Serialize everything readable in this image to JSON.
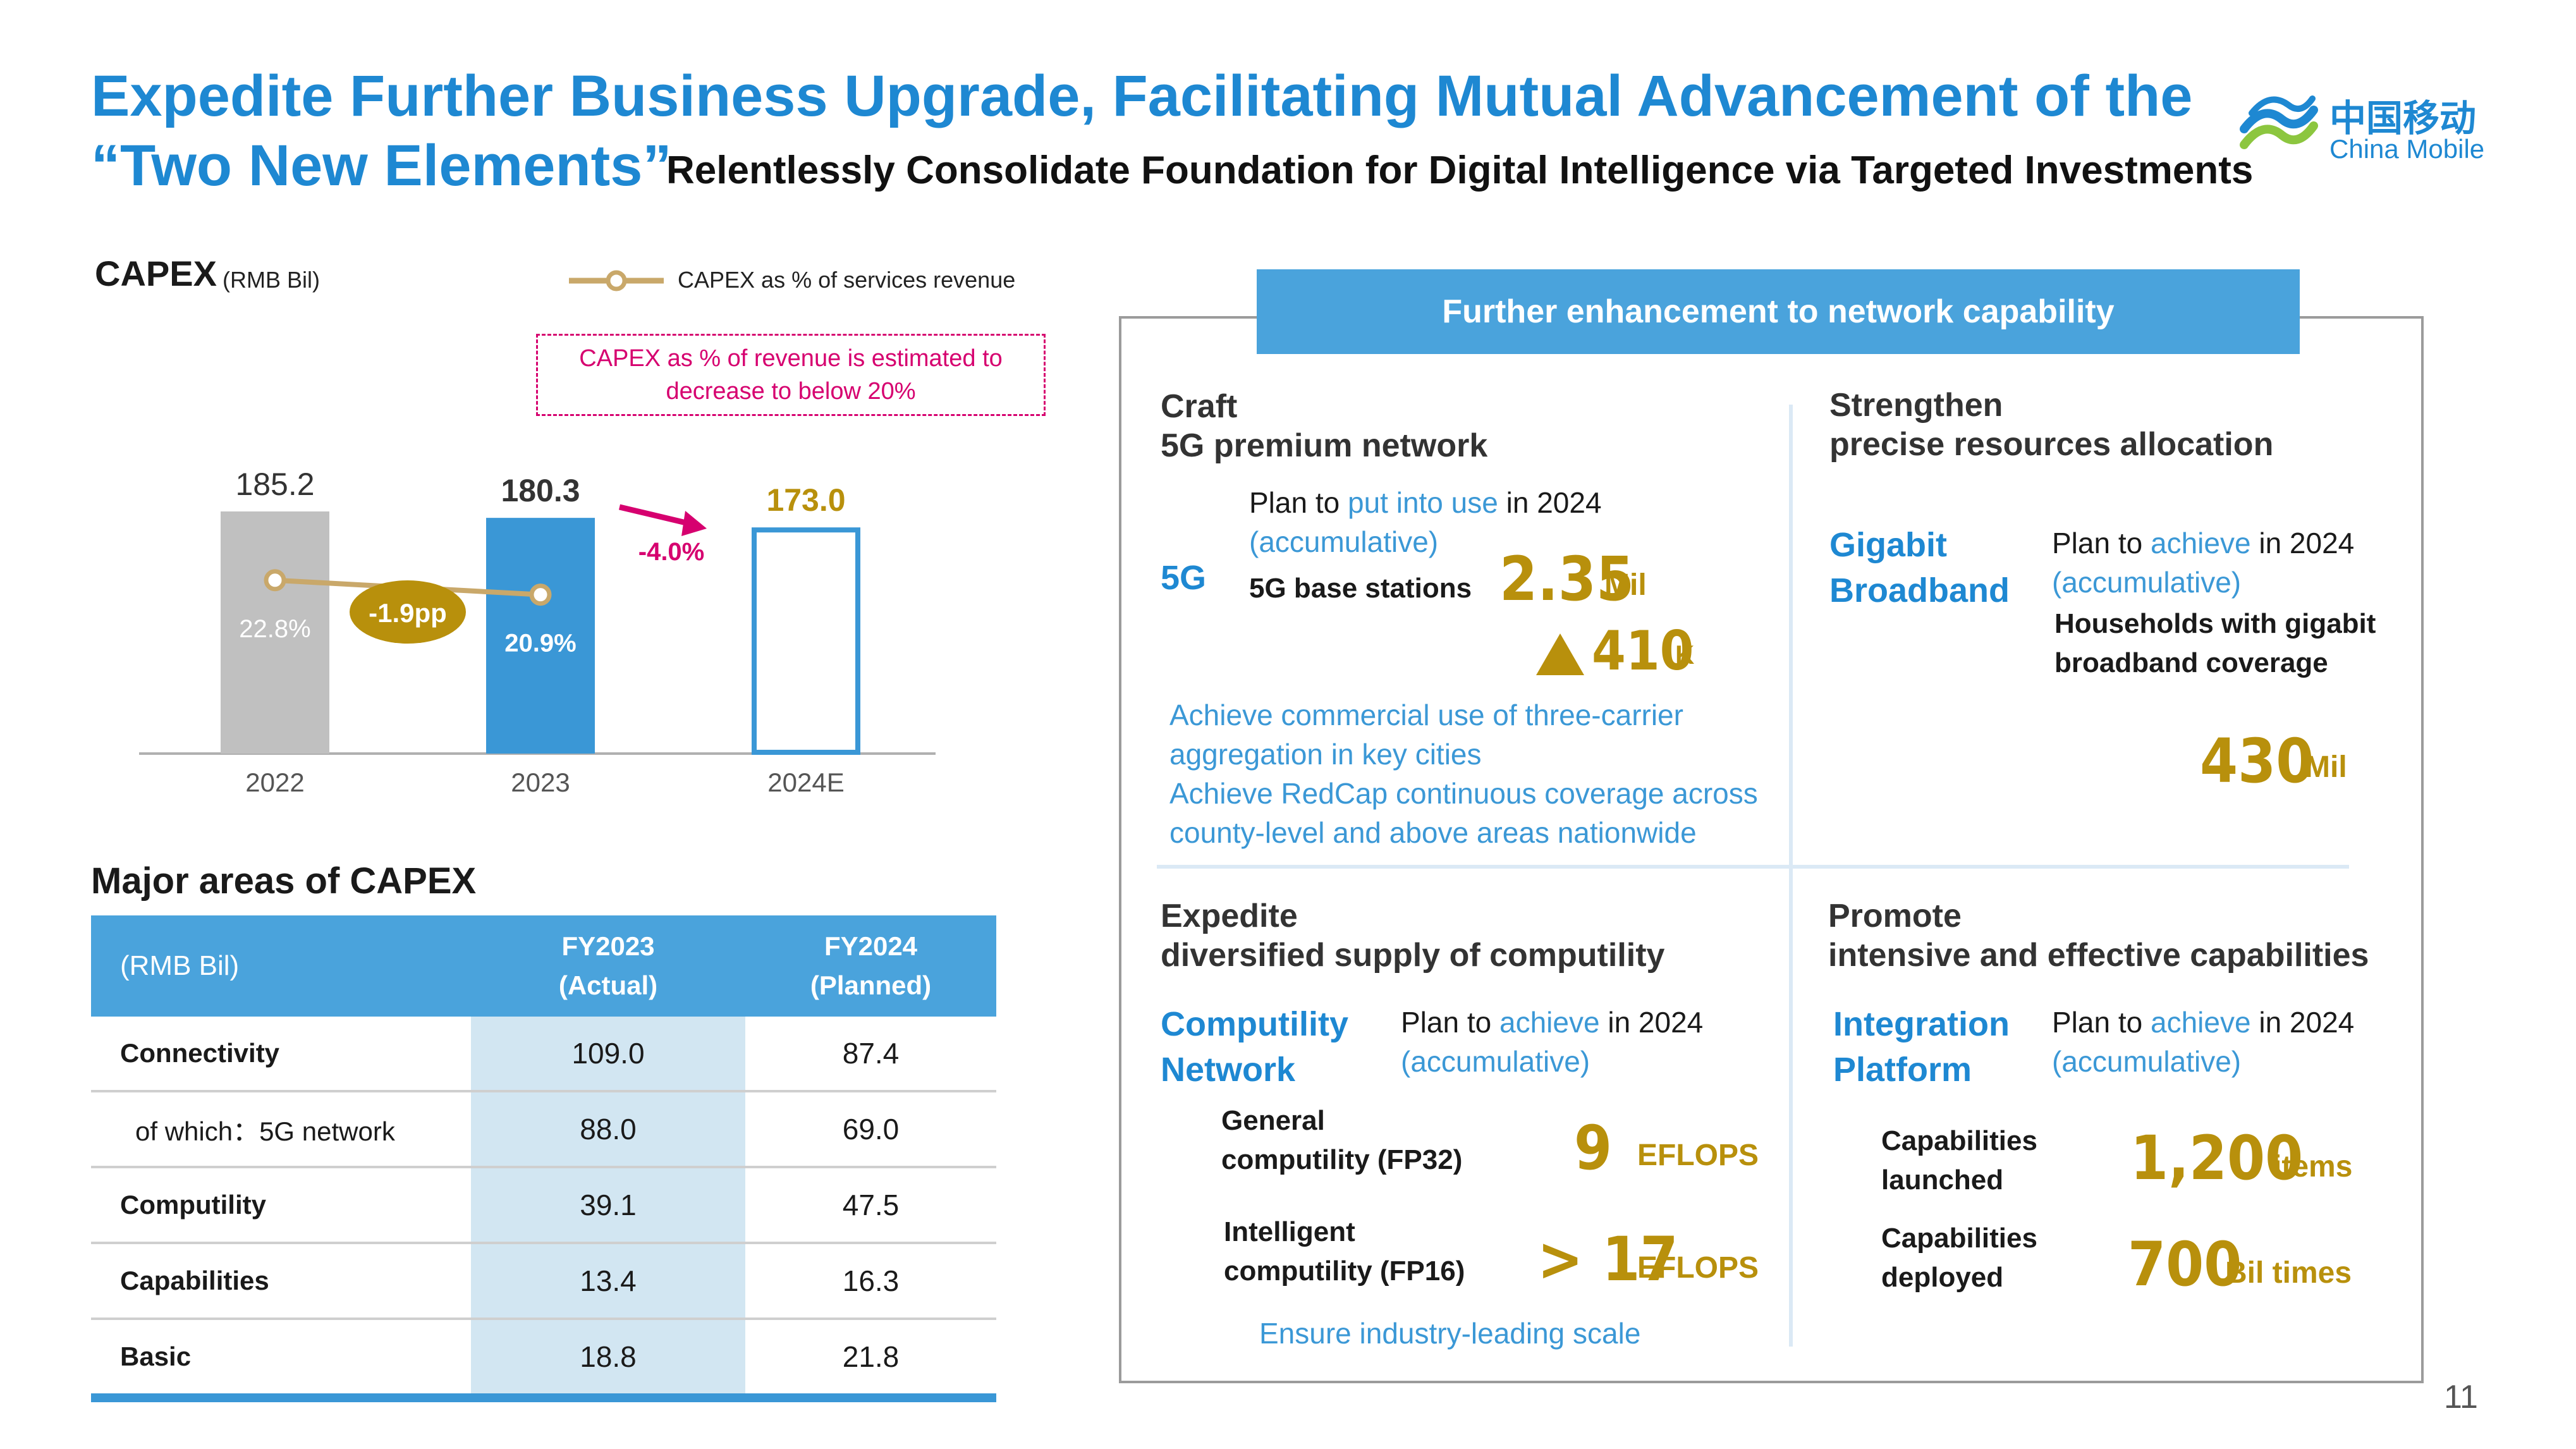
{
  "header": {
    "title_line1": "Expedite Further Business Upgrade, Facilitating Mutual Advancement of the",
    "title_line2": "“Two New Elements”",
    "subtitle": "Relentlessly Consolidate Foundation for Digital Intelligence via Targeted Investments",
    "logo_cn": "中国移动",
    "logo_en": "China Mobile"
  },
  "chart": {
    "title": "CAPEX",
    "unit": "(RMB Bil)",
    "legend_line": "CAPEX as % of services revenue",
    "note": "CAPEX as % of revenue is estimated to decrease to below 20%",
    "pp_badge": "-1.9pp",
    "change_label": "-4.0%"
  },
  "chart_data": {
    "type": "bar",
    "title": "CAPEX",
    "ylabel": "(RMB Bil)",
    "categories": [
      "2022",
      "2023",
      "2024E"
    ],
    "series": [
      {
        "name": "CAPEX",
        "values": [
          185.2,
          180.3,
          173.0
        ],
        "labels": [
          "185.2",
          "180.3",
          "173.0"
        ]
      },
      {
        "name": "CAPEX as % of services revenue",
        "values": [
          22.8,
          20.9,
          null
        ],
        "labels": [
          "22.8%",
          "20.9%",
          ""
        ]
      }
    ],
    "ylim": [
      0,
      200
    ],
    "colors": [
      "#c0c0c0",
      "#3a97d6",
      "#ffffff"
    ],
    "line_color": "#c9a86a",
    "legend_position": "top-right"
  },
  "table": {
    "title": "Major areas of CAPEX",
    "headers": [
      "(RMB Bil)",
      "FY2023 (Actual)",
      "FY2024 (Planned)"
    ],
    "header_lines": [
      [
        "FY2023",
        "(Actual)"
      ],
      [
        "FY2024",
        "(Planned)"
      ]
    ],
    "rows": [
      {
        "label": "Connectivity",
        "fy2023": "109.0",
        "fy2024": "87.4"
      },
      {
        "label": "of which：5G network",
        "fy2023": "88.0",
        "fy2024": "69.0"
      },
      {
        "label": "Computility",
        "fy2023": "39.1",
        "fy2024": "47.5"
      },
      {
        "label": "Capabilities",
        "fy2023": "13.4",
        "fy2024": "16.3"
      },
      {
        "label": "Basic",
        "fy2023": "18.8",
        "fy2024": "21.8"
      }
    ]
  },
  "panel": {
    "header": "Further enhancement to network capability",
    "plan_word": "Plan to",
    "in_2024": "in 2024",
    "accum": "(accumulative)",
    "q1": {
      "title1": "Craft",
      "title2": "5G premium network",
      "label": "5G",
      "action": "put into use",
      "metric": "5G base stations",
      "value": "2.35",
      "unit": "Mil",
      "increase": "410",
      "increase_unit": "K",
      "note1a": "Achieve commercial use of three-carrier",
      "note1b": "aggregation in key cities",
      "note2a": "Achieve RedCap continuous coverage across",
      "note2b": "county-level and above areas nationwide"
    },
    "q2": {
      "title1": "Strengthen",
      "title2": "precise resources allocation",
      "label1": "Gigabit",
      "label2": "Broadband",
      "action": "achieve",
      "metric1": "Households with gigabit",
      "metric2": "broadband coverage",
      "value": "430",
      "unit": "Mil"
    },
    "q3": {
      "title1": "Expedite",
      "title2": "diversified supply of computility",
      "label1": "Computility",
      "label2": "Network",
      "action": "achieve",
      "m1a": "General",
      "m1b": "computility (FP32)",
      "v1": "9",
      "u1": "EFLOPS",
      "m2a": "Intelligent",
      "m2b": "computility (FP16)",
      "v2": "> 17",
      "u2": "EFLOPS",
      "note": "Ensure industry-leading scale"
    },
    "q4": {
      "title1": "Promote",
      "title2": "intensive and effective capabilities",
      "label1": "Integration",
      "label2": "Platform",
      "action": "achieve",
      "m1a": "Capabilities",
      "m1b": "launched",
      "v1": "1,200",
      "u1": "items",
      "m2a": "Capabilities",
      "m2b": "deployed",
      "v2": "700",
      "u2": "Bil times"
    }
  },
  "page_number": "11"
}
